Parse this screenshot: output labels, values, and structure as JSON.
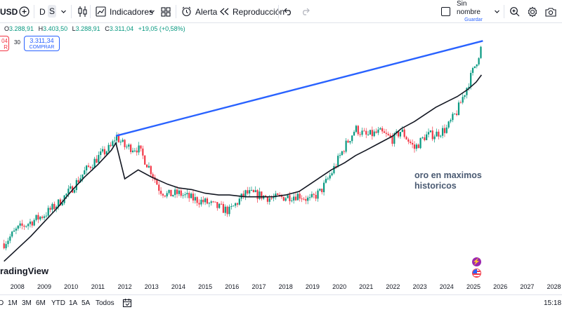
{
  "toolbar": {
    "symbol": "USD",
    "timeframes": [
      "D",
      "S"
    ],
    "indicators_label": "Indicadores",
    "alert_label": "Alerta",
    "replay_label": "Reproducción",
    "layout_name": "Sin nombre",
    "layout_status": "Guardar"
  },
  "legend": {
    "open_key": "O",
    "open": "3.288,91",
    "high_key": "H",
    "high": "3.403,50",
    "low_key": "L",
    "low": "3.288,91",
    "close_key": "C",
    "close": "3.311,04",
    "change": "+19,05 (+0,58%)",
    "sell_price_fragment": "04",
    "sell_label_fragment": "R",
    "spread": "30",
    "buy_price": "3.311,34",
    "buy_label": "COMPRAR"
  },
  "annotation": {
    "line1": "oro en maximos",
    "line2": "historicos"
  },
  "branding": {
    "logo_text": "radingView"
  },
  "event_icons": {
    "purple": "lightning-icon",
    "flag": "us-flag-icon"
  },
  "chart_data": {
    "type": "line",
    "x": [
      2007.5,
      2008,
      2008.5,
      2009,
      2009.5,
      2010,
      2010.5,
      2011,
      2011.5,
      2011.67,
      2012,
      2012.5,
      2013,
      2013.3,
      2013.6,
      2014,
      2014.5,
      2015,
      2015.5,
      2015.9,
      2016.5,
      2017,
      2017.5,
      2018,
      2018.5,
      2018.9,
      2019.3,
      2019.7,
      2020.2,
      2020.6,
      2021,
      2021.5,
      2022,
      2022.3,
      2022.8,
      2023.2,
      2023.6,
      2024,
      2024.4,
      2024.8,
      2025.1,
      2025.3
    ],
    "series": [
      {
        "values": [
          1.6,
          2.4,
          2.8,
          3.2,
          3.8,
          4.6,
          5.6,
          6.4,
          7.0,
          7.6,
          7.0,
          6.9,
          5.6,
          4.6,
          4.3,
          4.4,
          4.1,
          3.9,
          3.6,
          3.4,
          4.4,
          4.3,
          4.1,
          4.2,
          4.3,
          4.0,
          4.5,
          5.5,
          7.0,
          8.0,
          7.6,
          7.8,
          7.4,
          7.9,
          6.9,
          7.6,
          7.7,
          8.0,
          9.0,
          10.5,
          11.7,
          12.6
        ]
      },
      {
        "values": [
          0.6,
          1.3,
          2.0,
          2.8,
          3.6,
          4.5,
          5.3,
          6.0,
          6.8,
          7.2,
          5.2,
          5.7,
          5.3,
          5.1,
          4.9,
          4.7,
          4.6,
          4.4,
          4.3,
          4.3,
          4.2,
          4.2,
          4.2,
          4.3,
          4.5,
          4.9,
          5.3,
          5.7,
          6.1,
          6.5,
          6.8,
          7.2,
          7.6,
          8.0,
          8.4,
          8.8,
          9.2,
          9.5,
          9.8,
          10.2,
          10.6,
          11.0
        ]
      }
    ],
    "trendline": {
      "start": [
        2011.67,
        7.6
      ],
      "end": [
        2025.35,
        12.9
      ],
      "color": "#2962ff"
    },
    "moving_average_color": "#131722",
    "up_color": "#089981",
    "down_color": "#f23645",
    "xlim": [
      2007.35,
      2028.3
    ],
    "ylim": [
      0,
      13.5
    ],
    "x_tick_labels": [
      "2008",
      "2009",
      "2010",
      "2011",
      "2012",
      "2013",
      "2014",
      "2015",
      "2016",
      "2017",
      "2018",
      "2019",
      "2020",
      "2021",
      "2022",
      "2023",
      "2024",
      "2025",
      "2026",
      "2027",
      "2028"
    ],
    "grid": false,
    "log_scale": true
  },
  "bottom": {
    "ranges": [
      "D",
      "1M",
      "3M",
      "6M",
      "YTD",
      "1A",
      "5A",
      "Todos"
    ],
    "clock": "15:18"
  }
}
